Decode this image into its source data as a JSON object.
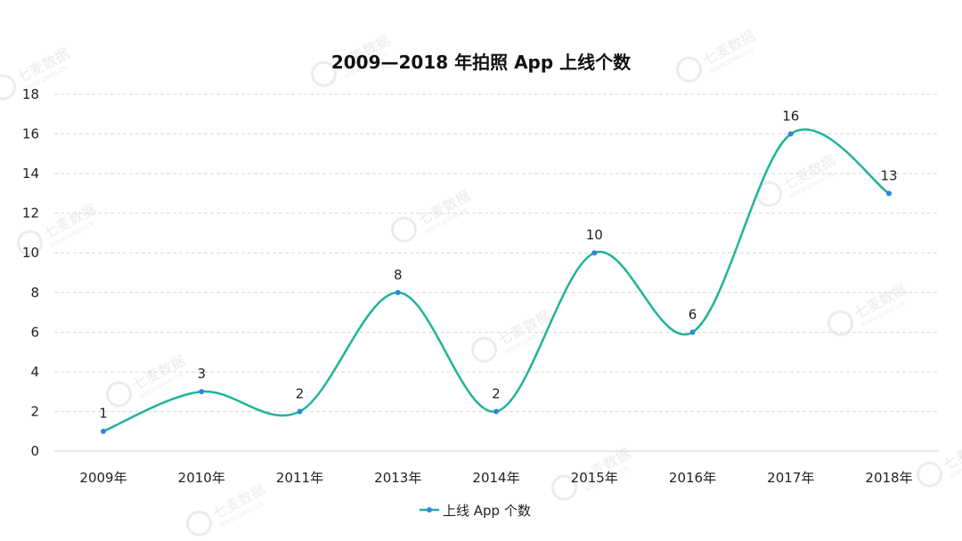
{
  "chart_data": {
    "type": "line",
    "smooth": true,
    "title": "2009—2018 年拍照 App 上线个数",
    "xlabel": "",
    "ylabel": "",
    "categories": [
      "2009年",
      "2010年",
      "2011年",
      "2013年",
      "2014年",
      "2015年",
      "2016年",
      "2017年",
      "2018年"
    ],
    "series": [
      {
        "name": "上线 App 个数",
        "values": [
          1,
          3,
          2,
          8,
          2,
          10,
          6,
          16,
          13
        ]
      }
    ],
    "ylim": [
      0,
      18
    ],
    "yticks": [
      0,
      2,
      4,
      6,
      8,
      10,
      12,
      14,
      16,
      18
    ],
    "grid": true,
    "legend_position": "bottom",
    "line_color": "#1fb39a",
    "marker_color": "#2e86de",
    "data_labels": true
  },
  "watermark": {
    "text": "七麦数据",
    "subtext": "WWW.QIMAI.CN"
  }
}
